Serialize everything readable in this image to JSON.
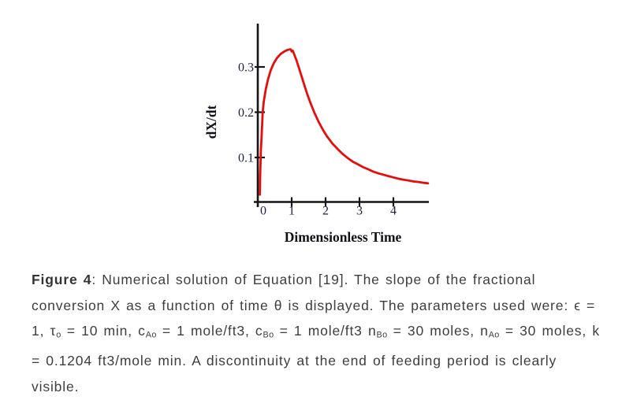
{
  "chart_data": {
    "type": "line",
    "title": "",
    "xlabel": "Dimensionless Time",
    "ylabel": "dX/dt",
    "x_ticks": [
      0,
      1,
      2,
      3,
      4
    ],
    "y_ticks": [
      0.1,
      0.2,
      0.3
    ],
    "xlim": [
      0,
      5.05
    ],
    "ylim": [
      0,
      0.39
    ],
    "grid": false,
    "legend": "none",
    "line_color": "#e60d0d",
    "axis_color": "#151515",
    "series": [
      {
        "name": "dX/dt",
        "points": [
          [
            0.06,
            0.018
          ],
          [
            0.07,
            0.06
          ],
          [
            0.085,
            0.1
          ],
          [
            0.09,
            0.115
          ],
          [
            0.105,
            0.135
          ],
          [
            0.13,
            0.175
          ],
          [
            0.145,
            0.2
          ],
          [
            0.18,
            0.225
          ],
          [
            0.24,
            0.252
          ],
          [
            0.3,
            0.272
          ],
          [
            0.38,
            0.292
          ],
          [
            0.47,
            0.308
          ],
          [
            0.57,
            0.32
          ],
          [
            0.68,
            0.329
          ],
          [
            0.8,
            0.335
          ],
          [
            0.9,
            0.338
          ],
          [
            0.97,
            0.339
          ],
          [
            1.0,
            0.334
          ],
          [
            1.03,
            0.336
          ],
          [
            1.08,
            0.327
          ],
          [
            1.15,
            0.313
          ],
          [
            1.25,
            0.289
          ],
          [
            1.35,
            0.265
          ],
          [
            1.45,
            0.242
          ],
          [
            1.55,
            0.221
          ],
          [
            1.67,
            0.199
          ],
          [
            1.8,
            0.178
          ],
          [
            1.93,
            0.16
          ],
          [
            2.05,
            0.146
          ],
          [
            2.2,
            0.131
          ],
          [
            2.35,
            0.119
          ],
          [
            2.5,
            0.108
          ],
          [
            2.65,
            0.099
          ],
          [
            2.8,
            0.091
          ],
          [
            2.95,
            0.085
          ],
          [
            3.1,
            0.079
          ],
          [
            3.25,
            0.074
          ],
          [
            3.4,
            0.069
          ],
          [
            3.55,
            0.065
          ],
          [
            3.7,
            0.062
          ],
          [
            3.85,
            0.059
          ],
          [
            4.0,
            0.056
          ],
          [
            4.15,
            0.053
          ],
          [
            4.3,
            0.051
          ],
          [
            4.45,
            0.049
          ],
          [
            4.6,
            0.047
          ],
          [
            4.75,
            0.046
          ],
          [
            4.9,
            0.044
          ],
          [
            5.02,
            0.043
          ]
        ]
      }
    ]
  },
  "caption": {
    "segments": [
      {
        "s": "b",
        "t": "Figure 4"
      },
      {
        "s": "n",
        "t": ": Numerical solution of Equation [19]. The slope of the fractional conversion X as a function of time θ is displayed. The parameters used were: ϵ = 1, τ"
      },
      {
        "s": "sub",
        "t": "o"
      },
      {
        "s": "n",
        "t": " = 10 min, c"
      },
      {
        "s": "sub",
        "t": "Ao"
      },
      {
        "s": "n",
        "t": " = 1 mole/ft3, c"
      },
      {
        "s": "sub",
        "t": "Bo"
      },
      {
        "s": "n",
        "t": " = 1 mole/ft3 n"
      },
      {
        "s": "sub",
        "t": "Bo"
      },
      {
        "s": "n",
        "t": " = 30 moles, n"
      },
      {
        "s": "sub",
        "t": "Ao"
      },
      {
        "s": "n",
        "t": " = 30 moles, k = 0.1204 ft3/mole min. A discontinuity at the end of feeding period is clearly visible."
      }
    ]
  },
  "colors": {
    "curve": "#e60d0d",
    "axis": "#151515",
    "tick_text": "#1f2040",
    "caption_text": "#3e3e40"
  }
}
